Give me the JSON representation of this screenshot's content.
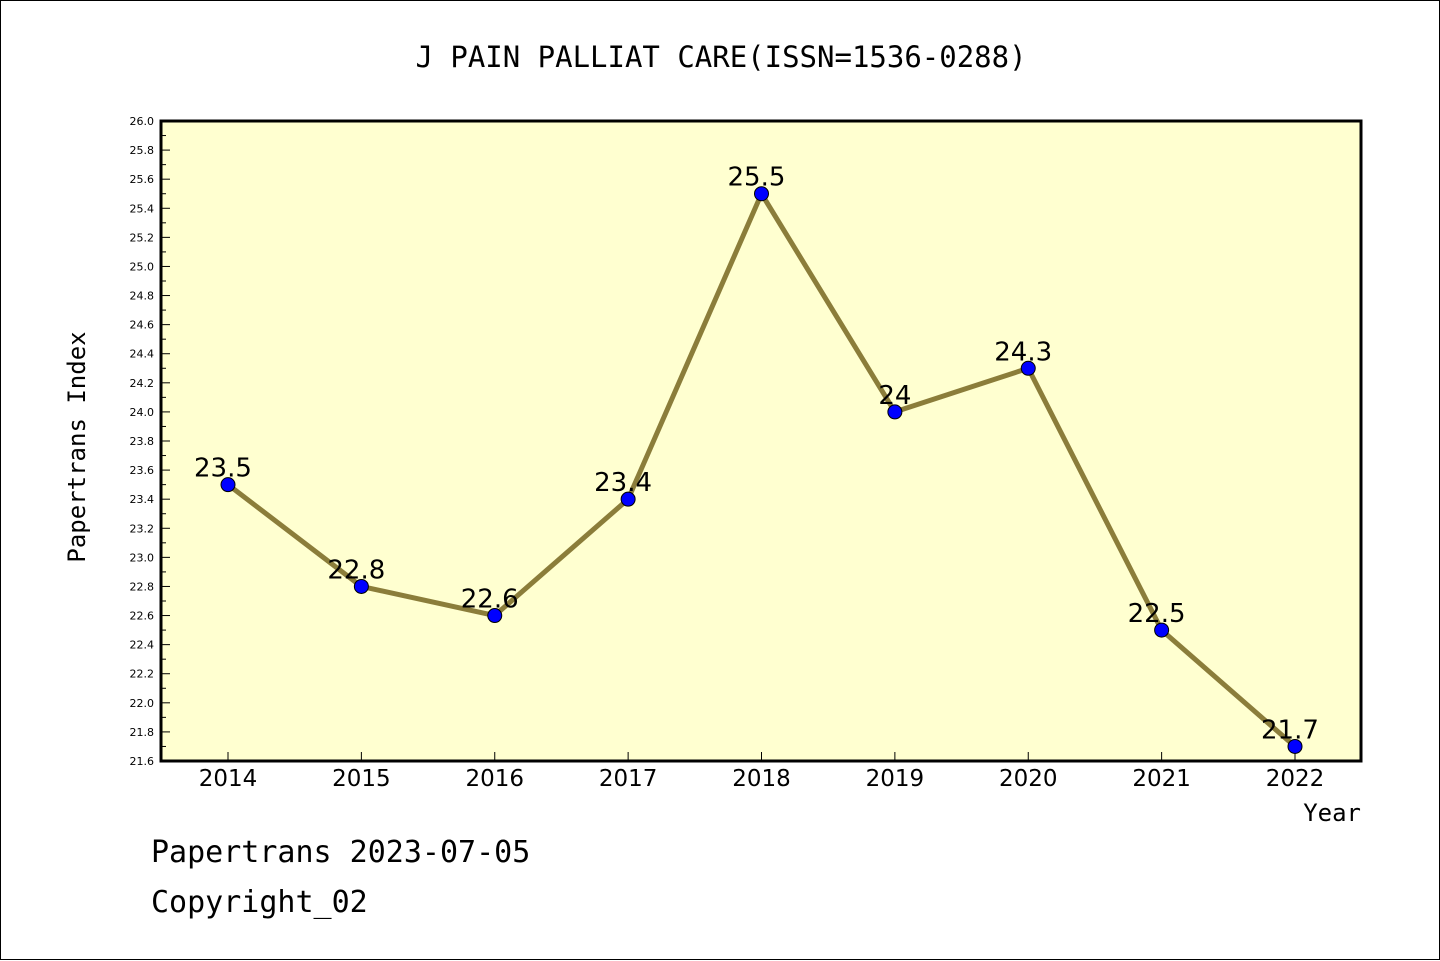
{
  "chart_data": {
    "type": "line",
    "title": "J PAIN PALLIAT CARE(ISSN=1536-0288)",
    "xlabel": "Year",
    "ylabel": "Papertrans Index",
    "x": [
      "2014",
      "2015",
      "2016",
      "2017",
      "2018",
      "2019",
      "2020",
      "2021",
      "2022"
    ],
    "series": [
      {
        "values": [
          23.5,
          22.8,
          22.6,
          23.4,
          25.5,
          24.0,
          24.3,
          22.5,
          21.7
        ],
        "labels": [
          "23.5",
          "22.8",
          "22.6",
          "23.4",
          "25.5",
          "24",
          "24.3",
          "22.5",
          "21.7"
        ],
        "line_color": "#8b7d3a",
        "marker_color": "#0000ff"
      }
    ],
    "ylim": [
      21.6,
      26.0
    ],
    "yticks": [
      "21.6",
      "21.8",
      "22.0",
      "22.2",
      "22.4",
      "22.6",
      "22.8",
      "23.0",
      "23.2",
      "23.4",
      "23.6",
      "23.8",
      "24.0",
      "24.2",
      "24.4",
      "24.6",
      "24.8",
      "25.0",
      "25.2",
      "25.4",
      "25.6",
      "25.8",
      "26.0"
    ],
    "plot_background": "#ffffd0",
    "grid": false,
    "legend": "none"
  },
  "footer": {
    "line1": "Papertrans 2023-07-05",
    "line2": "Copyright_02"
  }
}
